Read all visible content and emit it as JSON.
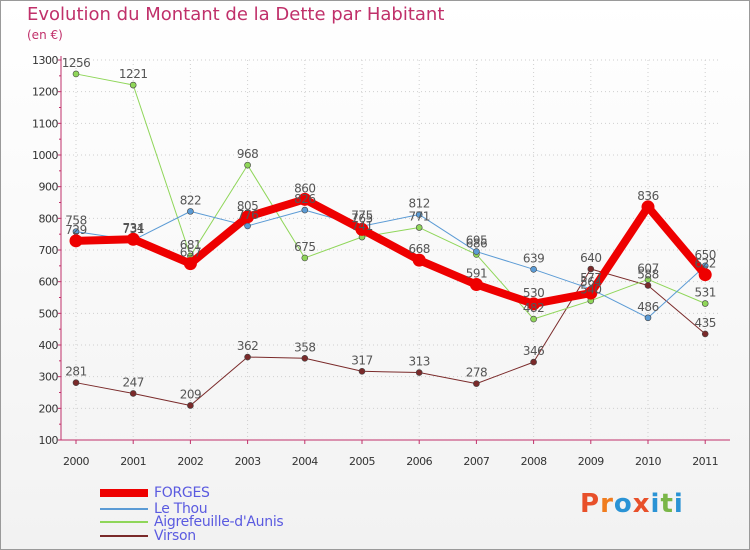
{
  "header": {
    "title": "Evolution du Montant de la Dette par Habitant",
    "unit": "(en €)"
  },
  "logo": {
    "text": "Proxiti",
    "colors": [
      "#e8502a",
      "#f07c1e",
      "#2a93d5",
      "#e8502a",
      "#2a93d5",
      "#7ab648",
      "#2a93d5"
    ]
  },
  "chart_data": {
    "type": "line",
    "title": "Evolution du Montant de la Dette par Habitant",
    "ylabel": "(en €)",
    "xlabel": "",
    "categories": [
      "2000",
      "2001",
      "2002",
      "2003",
      "2004",
      "2005",
      "2006",
      "2007",
      "2008",
      "2009",
      "2010",
      "2011"
    ],
    "ylim": [
      100,
      1300
    ],
    "yticks": [
      100,
      200,
      300,
      400,
      500,
      600,
      700,
      800,
      900,
      1000,
      1100,
      1200,
      1300
    ],
    "grid": true,
    "legend": "bottom-left",
    "series": [
      {
        "name": "FORGES",
        "color": "#ee0000",
        "width": 8,
        "values": [
          729,
          734,
          657,
          805,
          860,
          765,
          668,
          591,
          530,
          564,
          836,
          622
        ],
        "labels": [
          "729",
          "734",
          "657",
          "805",
          "860",
          "765",
          "668",
          "591",
          "530",
          "564",
          "836",
          "622"
        ]
      },
      {
        "name": "Le Thou",
        "color": "#5b9bd5",
        "width": 1,
        "values": [
          758,
          731,
          822,
          776,
          826,
          775,
          812,
          695,
          639,
          577,
          486,
          650
        ],
        "labels": [
          "758",
          "731",
          "822",
          "776",
          "826",
          "775",
          "812",
          "695",
          "639",
          "577",
          "486",
          "650"
        ]
      },
      {
        "name": "Aigrefeuille-d'Aunis",
        "color": "#8fd659",
        "width": 1,
        "values": [
          1256,
          1221,
          681,
          968,
          675,
          741,
          771,
          686,
          482,
          540,
          607,
          531
        ],
        "labels": [
          "1256",
          "1221",
          "681",
          "968",
          "675",
          "741",
          "771",
          "686",
          "482",
          "540",
          "607",
          "531"
        ]
      },
      {
        "name": "Virson",
        "color": "#7a2a2a",
        "width": 1,
        "values": [
          281,
          247,
          209,
          362,
          358,
          317,
          313,
          278,
          346,
          640,
          588,
          435
        ],
        "labels": [
          "281",
          "247",
          "209",
          "362",
          "358",
          "317",
          "313",
          "278",
          "346",
          "640",
          "588",
          "435"
        ]
      }
    ]
  }
}
